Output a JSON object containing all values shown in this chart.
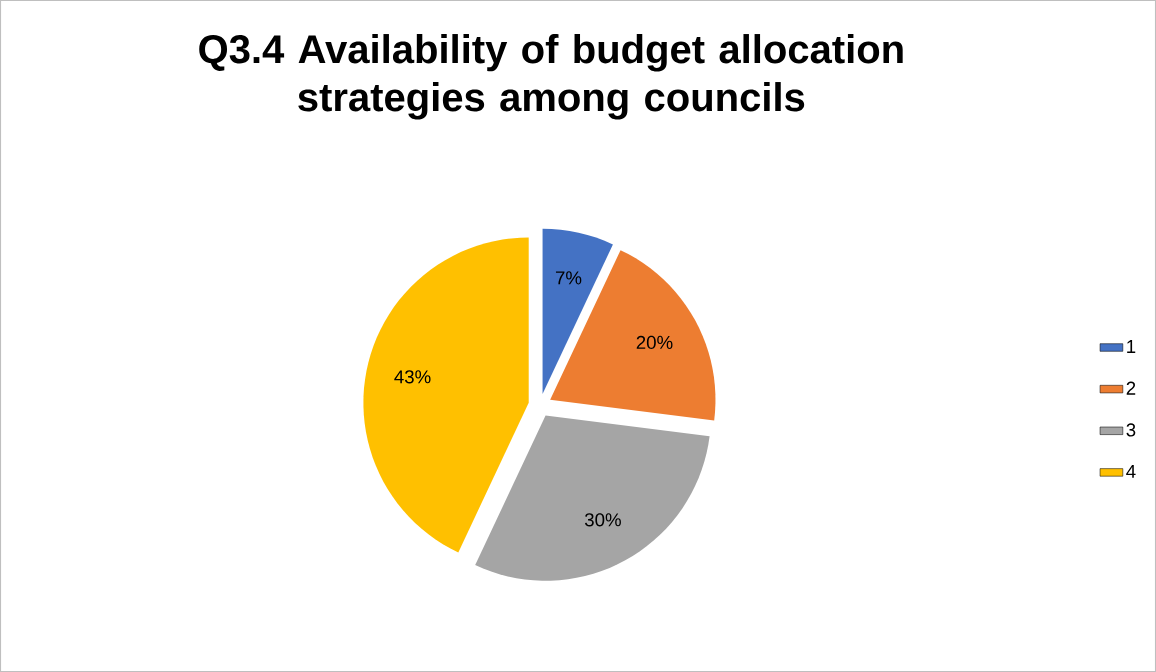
{
  "chart_data": {
    "type": "pie",
    "title": "Q3.4 Availability of budget allocation strategies among councils",
    "categories": [
      "1",
      "2",
      "3",
      "4"
    ],
    "values": [
      7,
      20,
      30,
      43
    ],
    "colors": [
      "#4472c4",
      "#ed7d31",
      "#a5a5a5",
      "#ffc000"
    ],
    "value_labels": [
      "7%",
      "20%",
      "30%",
      "43%"
    ],
    "legend": "right"
  }
}
